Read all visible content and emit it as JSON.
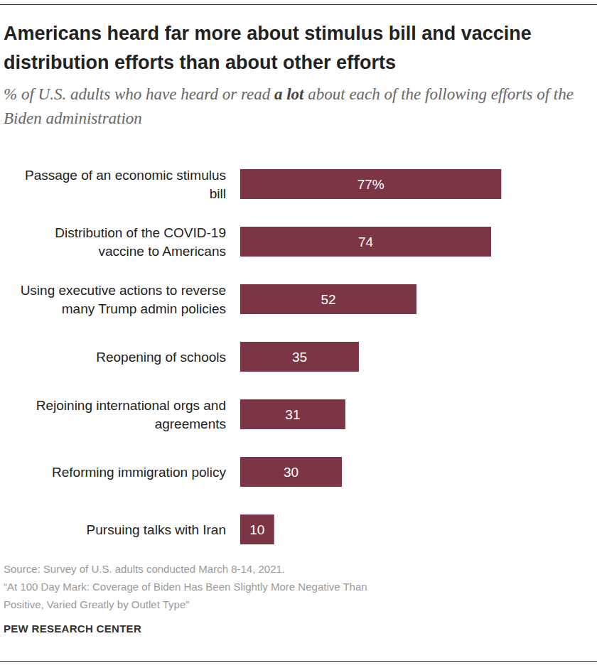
{
  "chart_data": {
    "type": "bar",
    "orientation": "horizontal",
    "title": "Americans heard far more about stimulus bill and vaccine distribution efforts than about other efforts",
    "subtitle": [
      "% of U.S. adults who have heard or read ",
      "a lot",
      " about each of the following efforts of the Biden administration"
    ],
    "categories": [
      "Passage of an economic stimulus bill",
      "Distribution of the COVID-19 vaccine to Americans",
      "Using executive actions to reverse many Trump admin policies",
      "Reopening of schools",
      "Rejoining international orgs and agreements",
      "Reforming immigration policy",
      "Pursuing talks with Iran"
    ],
    "values": [
      77,
      74,
      52,
      35,
      31,
      30,
      10
    ],
    "value_labels": [
      "77%",
      "74",
      "52",
      "35",
      "31",
      "30",
      "10"
    ],
    "color": "#7b3545",
    "xlim": [
      0,
      100
    ],
    "data_labels": true,
    "tick_labels": false,
    "grid": false,
    "source": "Source: Survey of U.S. adults conducted March 8-14, 2021.",
    "note": "“At 100 Day Mark: Coverage of Biden Has Been Slightly More Negative Than Positive, Varied Greatly by Outlet Type”",
    "credit": "PEW RESEARCH CENTER"
  }
}
